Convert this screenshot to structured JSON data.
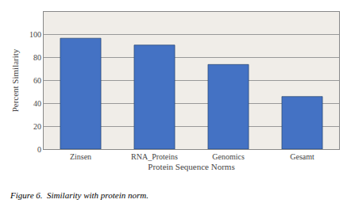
{
  "chart_data": {
    "type": "bar",
    "xlabel": "Protein Sequence Norms",
    "ylabel": "Percent Similarity",
    "categories": [
      "Zinsen",
      "RNA_Proteins",
      "Genomics",
      "Gesamt"
    ],
    "values": [
      97,
      91,
      74,
      46
    ],
    "color": "#4472C4",
    "ylim": [
      0,
      120
    ],
    "yticks": [
      0,
      20,
      40,
      60,
      80,
      100
    ],
    "grid": true,
    "annotations": [
      "Figure 6.  Similarity with protein norm."
    ]
  }
}
